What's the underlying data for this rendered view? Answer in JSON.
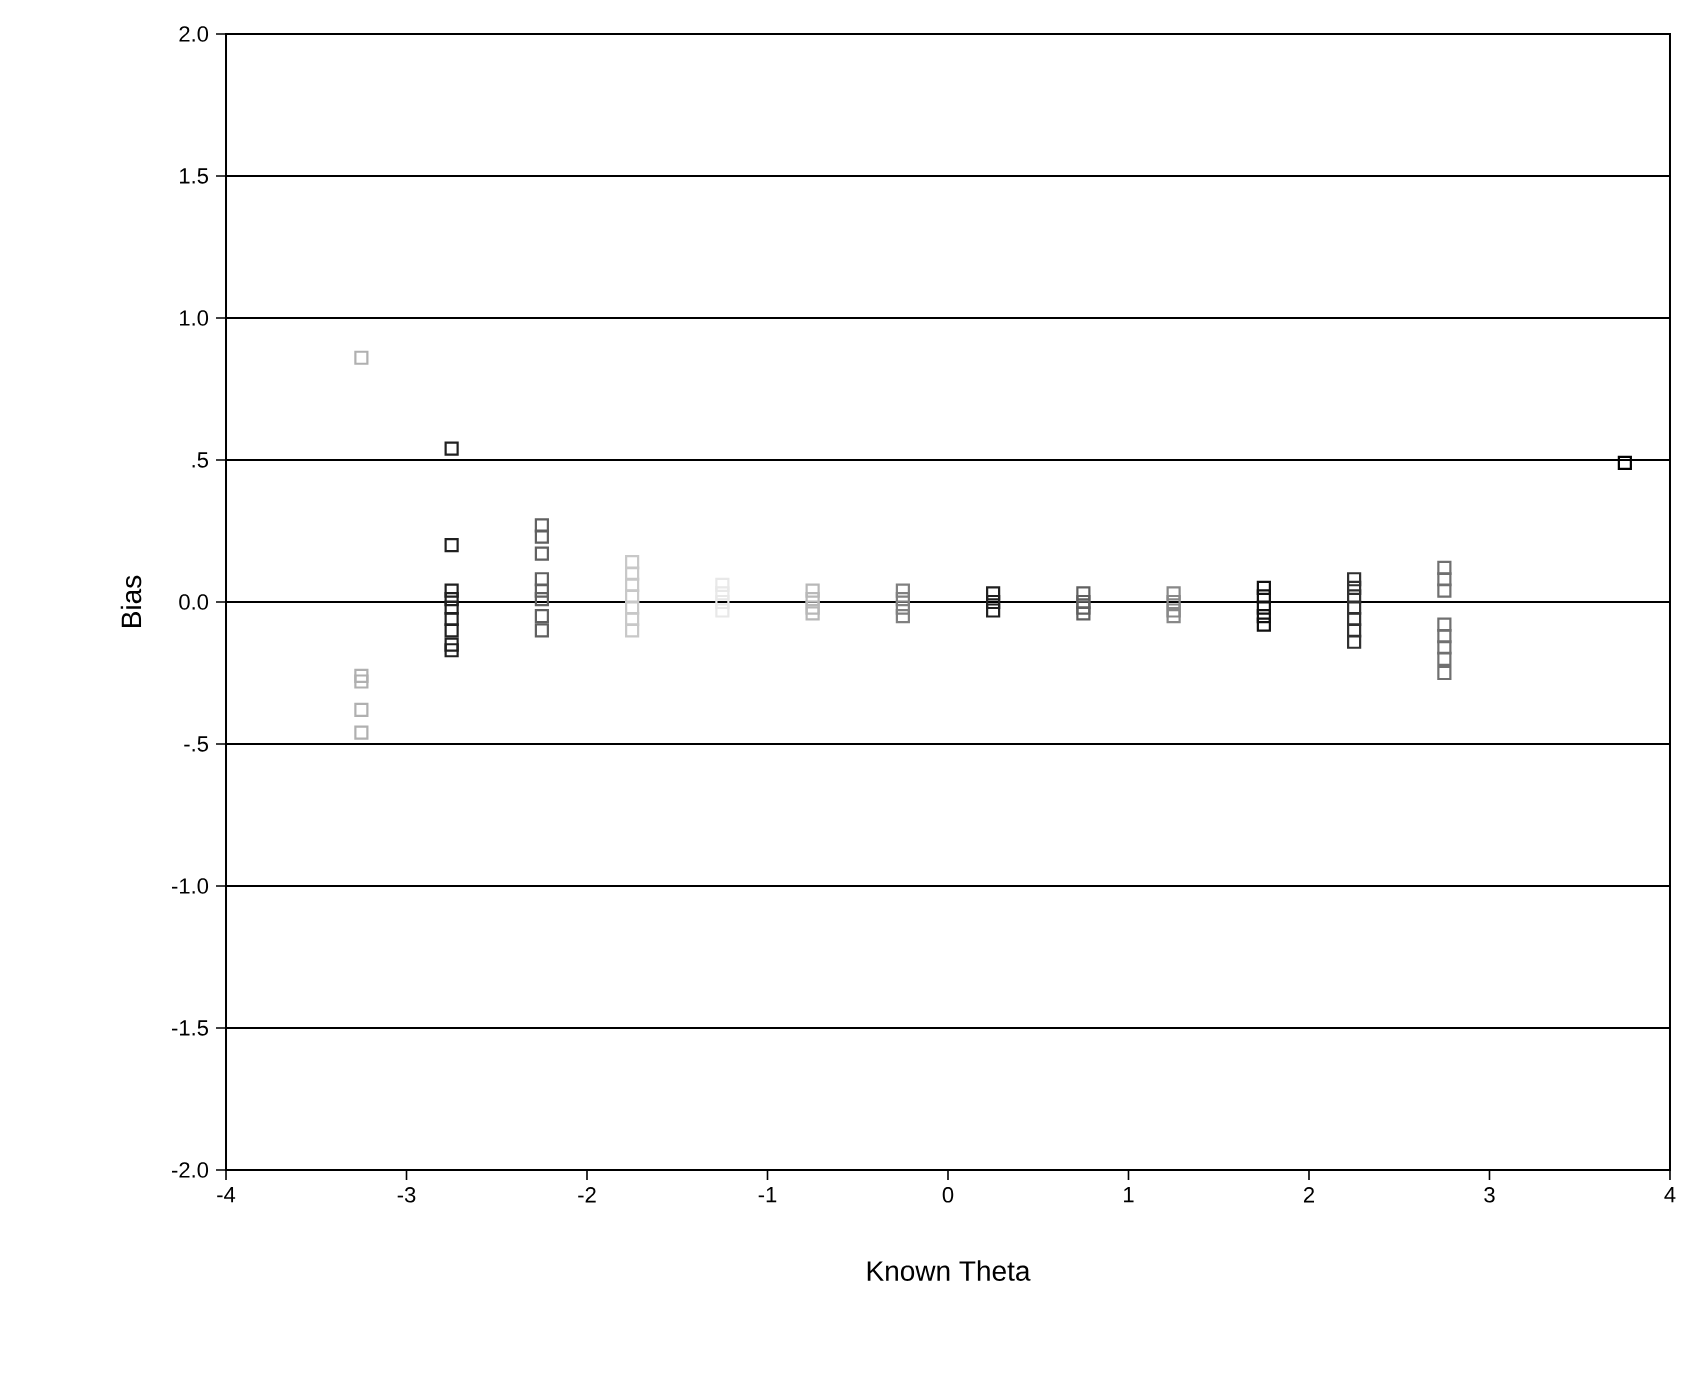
{
  "chart_data": {
    "type": "scatter",
    "xlabel": "Known Theta",
    "ylabel": "Bias",
    "xlim": [
      -4,
      4
    ],
    "ylim": [
      -2,
      2
    ],
    "xticks": [
      -4,
      -3,
      -2,
      -1,
      0,
      1,
      2,
      3,
      4
    ],
    "yticks": [
      {
        "value": -2,
        "label": "-2.0"
      },
      {
        "value": -1.5,
        "label": "-1.5"
      },
      {
        "value": -1,
        "label": "-1.0"
      },
      {
        "value": -0.5,
        "label": "-.5"
      },
      {
        "value": 0,
        "label": "0.0"
      },
      {
        "value": 0.5,
        "label": ".5"
      },
      {
        "value": 1,
        "label": "1.0"
      },
      {
        "value": 1.5,
        "label": "1.5"
      },
      {
        "value": 2,
        "label": "2.0"
      }
    ],
    "grid": "y",
    "marker": "square",
    "series": [
      {
        "color": "#b0b0b0",
        "x": [
          -3.25,
          -3.25,
          -3.25,
          -3.25,
          -3.25
        ],
        "values": [
          0.86,
          -0.26,
          -0.28,
          -0.38,
          -0.46
        ]
      },
      {
        "color": "#202020",
        "x": [
          -2.75,
          -2.75,
          -2.75,
          -2.75,
          -2.75,
          -2.75,
          -2.75,
          -2.75,
          -2.75
        ],
        "values": [
          0.54,
          0.2,
          0.04,
          0.01,
          -0.02,
          -0.06,
          -0.1,
          -0.15,
          -0.17
        ]
      },
      {
        "color": "#606060",
        "x": [
          -2.25,
          -2.25,
          -2.25,
          -2.25,
          -2.25,
          -2.25,
          -2.25,
          -2.25
        ],
        "values": [
          0.27,
          0.23,
          0.17,
          0.08,
          0.04,
          0.01,
          -0.05,
          -0.1
        ]
      },
      {
        "color": "#c8c8c8",
        "x": [
          -1.75,
          -1.75,
          -1.75,
          -1.75,
          -1.75,
          -1.75,
          -1.75
        ],
        "values": [
          0.14,
          0.1,
          0.06,
          0.02,
          -0.02,
          -0.06,
          -0.1
        ]
      },
      {
        "color": "#e8e8e8",
        "x": [
          -1.25,
          -1.25,
          -1.25,
          -1.25
        ],
        "values": [
          0.06,
          0.03,
          0.0,
          -0.03
        ]
      },
      {
        "color": "#b8b8b8",
        "x": [
          -0.75,
          -0.75,
          -0.75,
          -0.75
        ],
        "values": [
          0.04,
          0.01,
          -0.02,
          -0.04
        ]
      },
      {
        "color": "#808080",
        "x": [
          -0.25,
          -0.25,
          -0.25,
          -0.25
        ],
        "values": [
          0.04,
          0.01,
          -0.02,
          -0.05
        ]
      },
      {
        "color": "#202020",
        "x": [
          0.25,
          0.25,
          0.25
        ],
        "values": [
          0.03,
          0.0,
          -0.03
        ]
      },
      {
        "color": "#606060",
        "x": [
          0.75,
          0.75,
          0.75,
          0.75
        ],
        "values": [
          0.03,
          0.0,
          -0.02,
          -0.04
        ]
      },
      {
        "color": "#888888",
        "x": [
          1.25,
          1.25,
          1.25,
          1.25
        ],
        "values": [
          0.03,
          0.0,
          -0.03,
          -0.05
        ]
      },
      {
        "color": "#101010",
        "x": [
          1.75,
          1.75,
          1.75,
          1.75,
          1.75
        ],
        "values": [
          0.05,
          0.02,
          -0.02,
          -0.05,
          -0.08
        ]
      },
      {
        "color": "#303030",
        "x": [
          2.25,
          2.25,
          2.25,
          2.25,
          2.25,
          2.25,
          2.25
        ],
        "values": [
          0.08,
          0.05,
          0.02,
          -0.02,
          -0.06,
          -0.1,
          -0.14
        ]
      },
      {
        "color": "#707070",
        "x": [
          2.75,
          2.75,
          2.75,
          2.75,
          2.75,
          2.75,
          2.75,
          2.75
        ],
        "values": [
          0.12,
          0.08,
          0.04,
          -0.08,
          -0.12,
          -0.16,
          -0.2,
          -0.25
        ]
      },
      {
        "color": "#000000",
        "x": [
          3.75
        ],
        "values": [
          0.49
        ]
      }
    ]
  }
}
